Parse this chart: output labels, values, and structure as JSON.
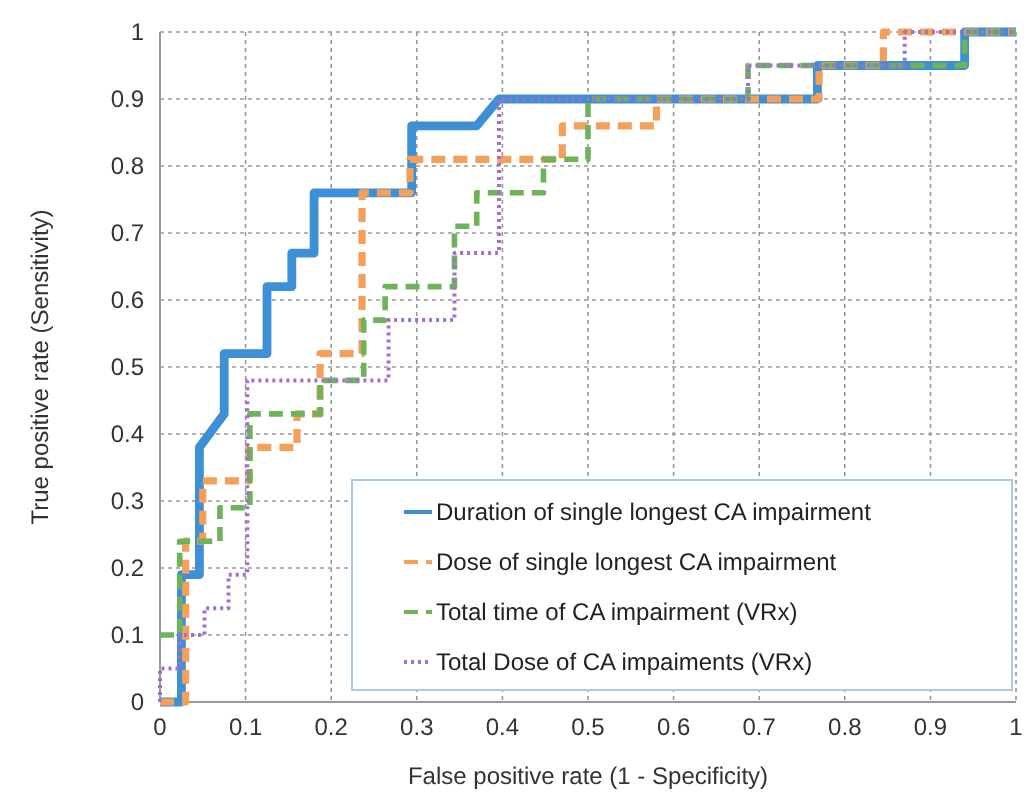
{
  "chart_data": {
    "type": "line",
    "xlabel": "False positive rate (1 - Specificity)",
    "ylabel": "True positive rate (Sensitivity)",
    "xlim": [
      0,
      1
    ],
    "ylim": [
      0,
      1
    ],
    "xticks": [
      0,
      0.1,
      0.2,
      0.3,
      0.4,
      0.5,
      0.6,
      0.7,
      0.8,
      0.9,
      1
    ],
    "yticks": [
      0,
      0.1,
      0.2,
      0.3,
      0.4,
      0.5,
      0.6,
      0.7,
      0.8,
      0.9,
      1
    ],
    "grid": true,
    "legend": "bottom right",
    "series": [
      {
        "name": "Duration of single longest CA impairment",
        "color": "#3d8fd6",
        "line_style": "solid",
        "x": [
          0,
          0.025,
          0.025,
          0.046,
          0.046,
          0.075,
          0.075,
          0.125,
          0.125,
          0.154,
          0.154,
          0.18,
          0.18,
          0.294,
          0.294,
          0.37,
          0.396,
          0.768,
          0.768,
          0.94,
          0.94,
          1
        ],
        "values": [
          0,
          0,
          0.19,
          0.19,
          0.38,
          0.43,
          0.52,
          0.52,
          0.62,
          0.62,
          0.67,
          0.67,
          0.76,
          0.76,
          0.86,
          0.86,
          0.9,
          0.9,
          0.95,
          0.95,
          1,
          1
        ]
      },
      {
        "name": "Dose of single longest CA impairment",
        "color": "#f5a05a",
        "line_style": "dashed",
        "x": [
          0,
          0.03,
          0.03,
          0.05,
          0.05,
          0.104,
          0.104,
          0.16,
          0.16,
          0.187,
          0.187,
          0.236,
          0.236,
          0.292,
          0.292,
          0.47,
          0.47,
          0.58,
          0.58,
          0.77,
          0.77,
          0.845,
          0.845,
          1
        ],
        "values": [
          0,
          0,
          0.24,
          0.24,
          0.33,
          0.33,
          0.38,
          0.38,
          0.43,
          0.43,
          0.52,
          0.52,
          0.76,
          0.76,
          0.81,
          0.81,
          0.86,
          0.86,
          0.9,
          0.9,
          0.95,
          0.95,
          1,
          1
        ]
      },
      {
        "name": "Total time of CA impairment (VRx)",
        "color": "#6db35a",
        "line_style": "dashed",
        "x": [
          0,
          0.023,
          0.023,
          0.07,
          0.07,
          0.105,
          0.105,
          0.187,
          0.187,
          0.238,
          0.238,
          0.263,
          0.263,
          0.344,
          0.344,
          0.37,
          0.37,
          0.448,
          0.448,
          0.5,
          0.5,
          0.687,
          0.687,
          0.94,
          0.94,
          1
        ],
        "values": [
          0.1,
          0.1,
          0.24,
          0.24,
          0.29,
          0.29,
          0.43,
          0.43,
          0.48,
          0.48,
          0.57,
          0.57,
          0.62,
          0.62,
          0.71,
          0.71,
          0.76,
          0.76,
          0.81,
          0.81,
          0.9,
          0.9,
          0.95,
          0.95,
          1,
          1
        ]
      },
      {
        "name": "Total Dose of CA impaiments (VRx)",
        "color": "#a070d0",
        "line_style": "dotted",
        "x": [
          0,
          0,
          0.023,
          0.023,
          0.052,
          0.052,
          0.08,
          0.08,
          0.102,
          0.102,
          0.267,
          0.267,
          0.344,
          0.344,
          0.396,
          0.396,
          0.687,
          0.687,
          0.87,
          0.87,
          1
        ],
        "values": [
          0,
          0.05,
          0.05,
          0.1,
          0.1,
          0.14,
          0.14,
          0.19,
          0.19,
          0.48,
          0.48,
          0.57,
          0.57,
          0.67,
          0.67,
          0.9,
          0.9,
          0.95,
          0.95,
          1,
          1
        ]
      }
    ]
  }
}
